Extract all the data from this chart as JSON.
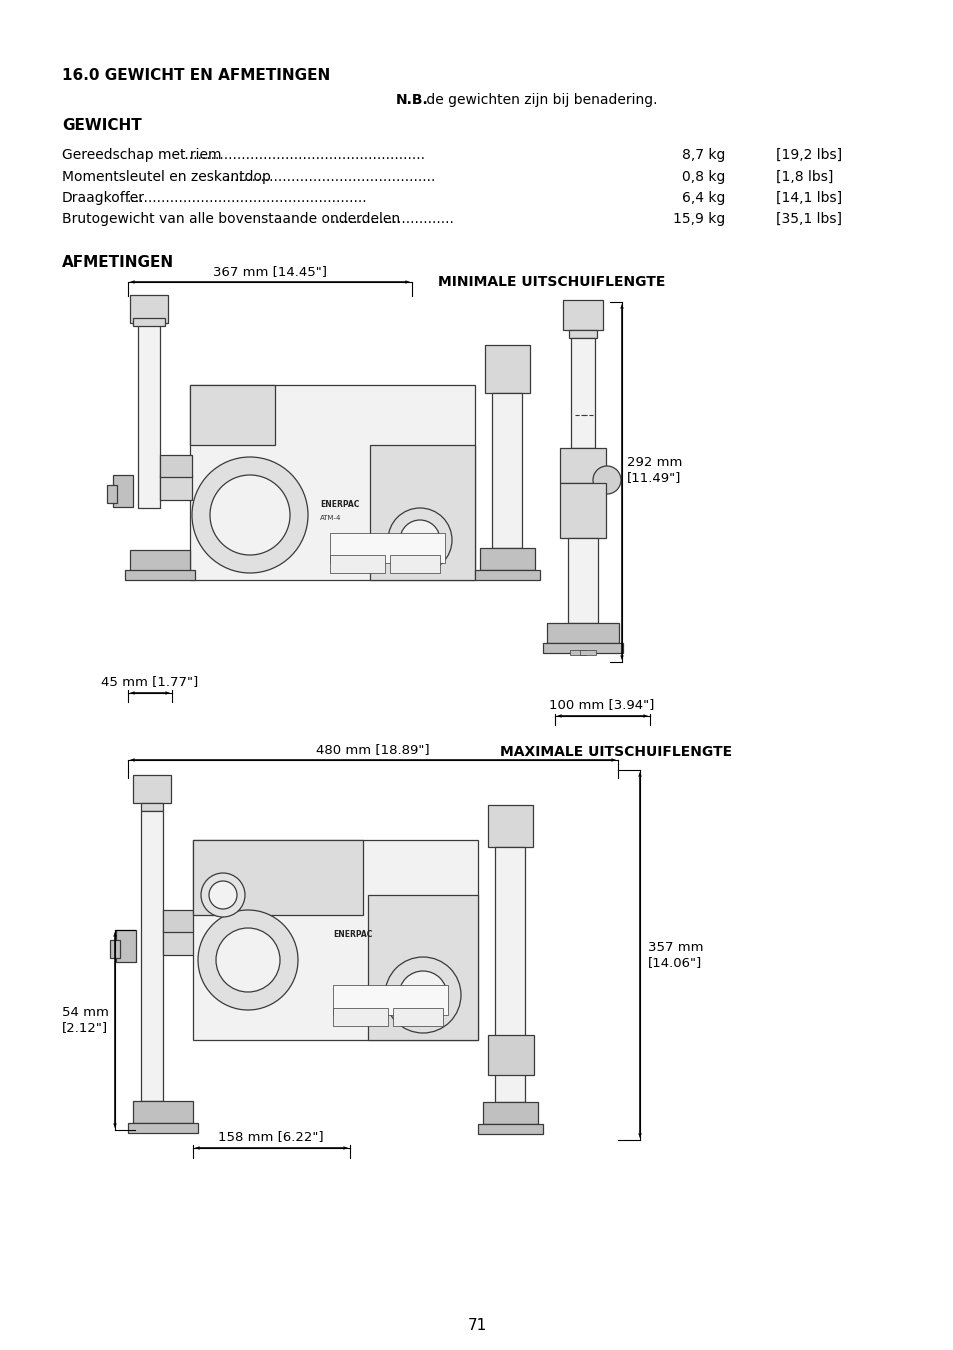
{
  "title_section": "16.0 GEWICHT EN AFMETINGEN",
  "nb_bold": "N.B.",
  "nb_rest": " de gewichten zijn bij benadering.",
  "gewicht_header": "GEWICHT",
  "weight_rows": [
    {
      "label": "Gereedschap met riem",
      "kg": "8,7 kg",
      "lbs": "[19,2 lbs]"
    },
    {
      "label": "Momentsleutel en zeskantdop",
      "kg": "0,8 kg",
      "lbs": "[1,8 lbs]"
    },
    {
      "label": "Draagkoffer",
      "kg": "6,4 kg",
      "lbs": "[14,1 lbs]"
    },
    {
      "label": "Brutogewicht van alle bovenstaande onderdelen",
      "kg": "15,9 kg",
      "lbs": "[35,1 lbs]"
    }
  ],
  "afmetingen_header": "AFMETINGEN",
  "minimale_header": "MINIMALE UITSCHUIFLENGTE",
  "maximale_header": "MAXIMALE UITSCHUIFLENGTE",
  "page_number": "71",
  "bg_color": "#ffffff",
  "text_color": "#000000"
}
